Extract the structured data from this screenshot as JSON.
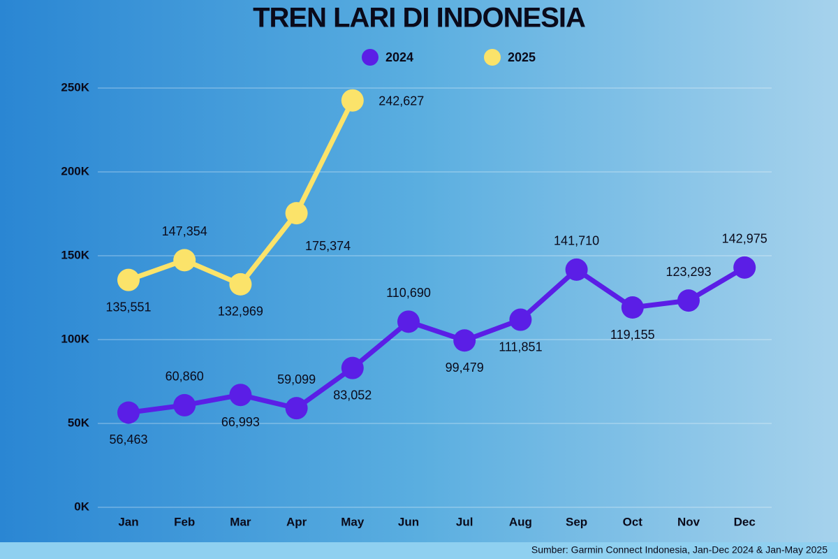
{
  "chart_data": {
    "type": "line",
    "title": "TREN LARI DI INDONESIA",
    "categories": [
      "Jan",
      "Feb",
      "Mar",
      "Apr",
      "May",
      "Jun",
      "Jul",
      "Aug",
      "Sep",
      "Oct",
      "Nov",
      "Dec"
    ],
    "series": [
      {
        "name": "2024",
        "color": "#5b1ee6",
        "values": [
          56463,
          60860,
          66993,
          59099,
          83052,
          110690,
          99479,
          111851,
          141710,
          119155,
          123293,
          142975
        ],
        "value_labels": [
          "56,463",
          "60,860",
          "66,993",
          "59,099",
          "83,052",
          "110,690",
          "99,479",
          "111,851",
          "141,710",
          "119,155",
          "123,293",
          "142,975"
        ]
      },
      {
        "name": "2025",
        "color": "#fbe36a",
        "values": [
          135551,
          147354,
          132969,
          175374,
          242627,
          null,
          null,
          null,
          null,
          null,
          null,
          null
        ],
        "value_labels": [
          "135,551",
          "147,354",
          "132,969",
          "175,374",
          "242,627",
          null,
          null,
          null,
          null,
          null,
          null,
          null
        ]
      }
    ],
    "ylim": [
      0,
      250000
    ],
    "yticks": [
      {
        "value": 0,
        "label": "0K"
      },
      {
        "value": 50000,
        "label": "50K"
      },
      {
        "value": 100000,
        "label": "100K"
      },
      {
        "value": 150000,
        "label": "150K"
      },
      {
        "value": 200000,
        "label": "200K"
      },
      {
        "value": 250000,
        "label": "250K"
      }
    ],
    "grid": true,
    "legend": "top",
    "source": "Sumber: Garmin Connect Indonesia, Jan-Dec 2024 & Jan-May 2025"
  }
}
